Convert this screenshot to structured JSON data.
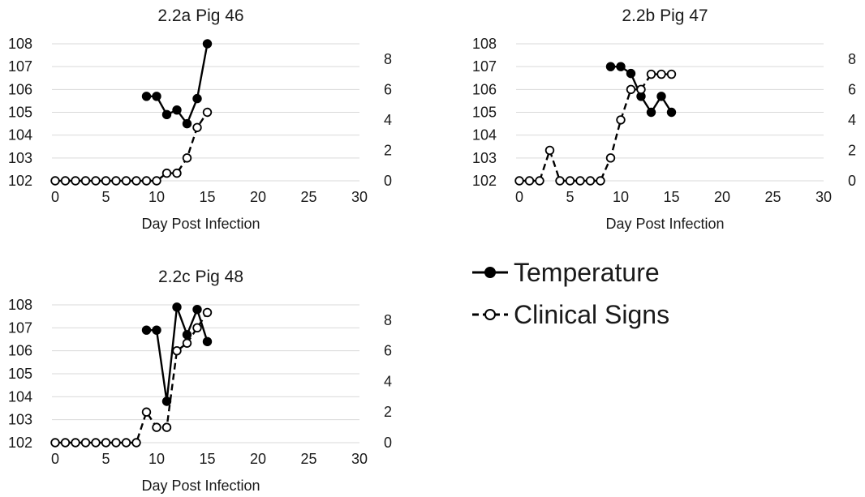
{
  "legend": [
    {
      "name": "Temperature",
      "style": "solid-filled"
    },
    {
      "name": "Clinical Signs",
      "style": "dashed-open"
    }
  ],
  "chart_data": [
    {
      "type": "line",
      "title": "2.2a Pig 46",
      "xlabel": "Day Post Infection",
      "xlim": [
        0,
        30
      ],
      "xticks": [
        0,
        5,
        10,
        15,
        20,
        25,
        30
      ],
      "ylim": [
        102,
        108
      ],
      "yticks": [
        102,
        103,
        104,
        105,
        106,
        107,
        108
      ],
      "y2lim": [
        0,
        9
      ],
      "y2ticks": [
        0,
        2,
        4,
        6,
        8
      ],
      "grid": true,
      "series": [
        {
          "name": "Temperature",
          "axis": "left",
          "color": "#000000",
          "x": [
            9,
            10,
            11,
            12,
            13,
            14,
            15
          ],
          "y": [
            105.7,
            105.7,
            104.9,
            105.1,
            104.5,
            105.6,
            108.0
          ]
        },
        {
          "name": "Clinical Signs",
          "axis": "right",
          "color": "#000000",
          "x": [
            0,
            1,
            2,
            3,
            4,
            5,
            6,
            7,
            8,
            9,
            10,
            11,
            12,
            13,
            14,
            15
          ],
          "y": [
            0,
            0,
            0,
            0,
            0,
            0,
            0,
            0,
            0,
            0,
            0,
            0.5,
            0.5,
            1.5,
            3.5,
            4.5
          ]
        }
      ]
    },
    {
      "type": "line",
      "title": "2.2b Pig 47",
      "xlabel": "Day Post Infection",
      "xlim": [
        0,
        30
      ],
      "xticks": [
        0,
        5,
        10,
        15,
        20,
        25,
        30
      ],
      "ylim": [
        102,
        108
      ],
      "yticks": [
        102,
        103,
        104,
        105,
        106,
        107,
        108
      ],
      "y2lim": [
        0,
        9
      ],
      "y2ticks": [
        0,
        2,
        4,
        6,
        8
      ],
      "grid": true,
      "series": [
        {
          "name": "Temperature",
          "axis": "left",
          "color": "#000000",
          "x": [
            9,
            10,
            11,
            12,
            13,
            14,
            15
          ],
          "y": [
            107.0,
            107.0,
            106.7,
            105.7,
            105.0,
            105.7,
            105.0
          ]
        },
        {
          "name": "Clinical Signs",
          "axis": "right",
          "color": "#000000",
          "x": [
            0,
            1,
            2,
            3,
            4,
            5,
            6,
            7,
            8,
            9,
            10,
            11,
            12,
            13,
            14,
            15
          ],
          "y": [
            0,
            0,
            0,
            2,
            0,
            0,
            0,
            0,
            0,
            1.5,
            4,
            6,
            6,
            7,
            7,
            7
          ]
        }
      ]
    },
    {
      "type": "line",
      "title": "2.2c Pig 48",
      "xlabel": "Day Post Infection",
      "xlim": [
        0,
        30
      ],
      "xticks": [
        0,
        5,
        10,
        15,
        20,
        25,
        30
      ],
      "ylim": [
        102,
        108
      ],
      "yticks": [
        102,
        103,
        104,
        105,
        106,
        107,
        108
      ],
      "y2lim": [
        0,
        9
      ],
      "y2ticks": [
        0,
        2,
        4,
        6,
        8
      ],
      "grid": true,
      "series": [
        {
          "name": "Temperature",
          "axis": "left",
          "color": "#000000",
          "x": [
            9,
            10,
            11,
            12,
            13,
            14,
            15
          ],
          "y": [
            106.9,
            106.9,
            103.8,
            107.9,
            106.7,
            107.8,
            106.4
          ]
        },
        {
          "name": "Clinical Signs",
          "axis": "right",
          "color": "#000000",
          "x": [
            0,
            1,
            2,
            3,
            4,
            5,
            6,
            7,
            8,
            9,
            10,
            11,
            12,
            13,
            14,
            15
          ],
          "y": [
            0,
            0,
            0,
            0,
            0,
            0,
            0,
            0,
            0,
            2,
            1,
            1,
            6,
            6.5,
            7.5,
            8.5
          ]
        }
      ]
    }
  ]
}
